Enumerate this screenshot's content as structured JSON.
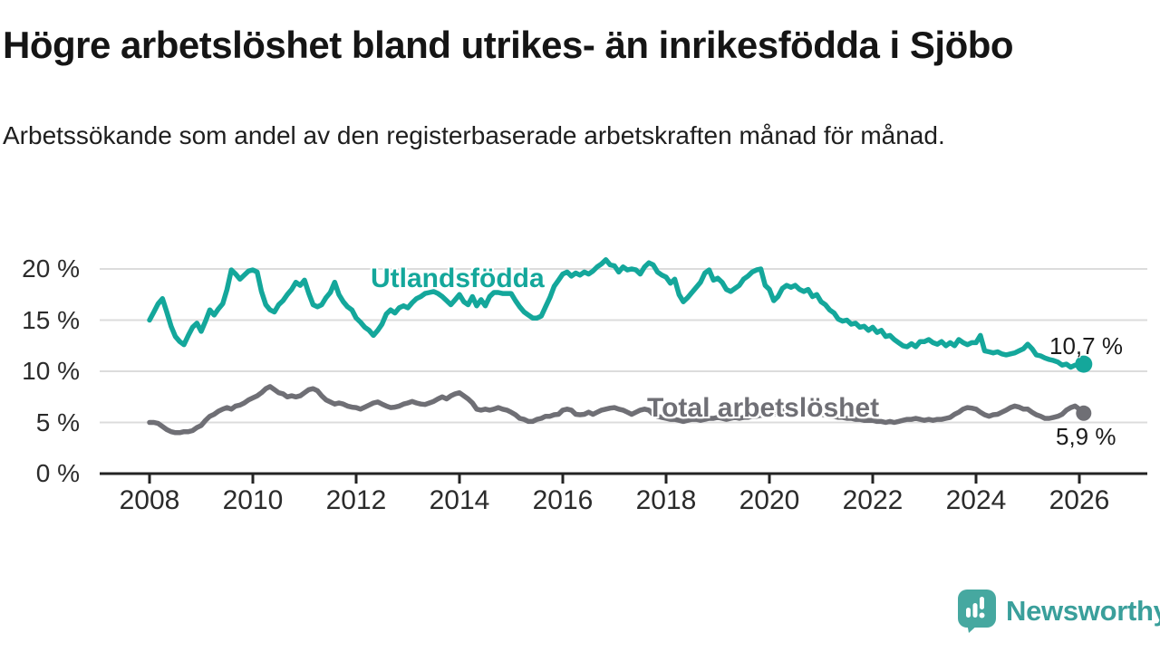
{
  "header": {
    "title": "Högre arbetslöshet bland utrikes- än inrikesfödda i Sjöbo",
    "subtitle": "Arbetssökande som andel av den registerbaserade arbetskraften månad för månad."
  },
  "chart_data": {
    "type": "line",
    "title": "Högre arbetslöshet bland utrikes- än inrikesfödda i Sjöbo",
    "xlabel": "",
    "ylabel": "Arbetssökande som andel av den registerbaserade arbetskraften",
    "x_unit": "monthly, from January 2008",
    "x_start_year": 2008,
    "x_months_per_point": 1,
    "ylim": [
      0,
      21.5
    ],
    "grid": true,
    "legend_position": "inline-labels",
    "x_ticks": [
      2008,
      2010,
      2012,
      2014,
      2016,
      2018,
      2020,
      2022,
      2024,
      2026
    ],
    "y_ticks": [
      {
        "value": 0,
        "label": "0 %"
      },
      {
        "value": 5,
        "label": "5 %"
      },
      {
        "value": 10,
        "label": "10 %"
      },
      {
        "value": 15,
        "label": "15 %"
      },
      {
        "value": 20,
        "label": "20 %"
      }
    ],
    "series": [
      {
        "name": "Utlandsfödda",
        "color": "#14a79b",
        "end_label": "10,7 %",
        "end_value": 10.7,
        "values": [
          15.0,
          15.8,
          16.6,
          17.1,
          15.8,
          14.4,
          13.4,
          12.9,
          12.6,
          13.5,
          14.3,
          14.7,
          13.9,
          14.9,
          16.0,
          15.5,
          16.1,
          16.6,
          18.0,
          19.9,
          19.5,
          19.0,
          19.4,
          19.8,
          19.9,
          19.7,
          17.8,
          16.5,
          16.0,
          15.8,
          16.5,
          16.9,
          17.5,
          18.0,
          18.7,
          18.4,
          18.9,
          17.6,
          16.5,
          16.3,
          16.5,
          17.2,
          17.7,
          18.7,
          17.5,
          16.8,
          16.3,
          16.0,
          15.2,
          14.8,
          14.3,
          14.0,
          13.5,
          14.0,
          14.6,
          15.6,
          16.0,
          15.7,
          16.2,
          16.4,
          16.2,
          16.7,
          17.1,
          17.3,
          17.6,
          17.7,
          17.8,
          17.6,
          17.3,
          16.9,
          16.5,
          17.0,
          17.5,
          16.8,
          16.5,
          17.3,
          16.4,
          17.0,
          16.4,
          17.3,
          17.7,
          17.7,
          17.6,
          17.6,
          17.6,
          16.9,
          16.3,
          15.8,
          15.5,
          15.2,
          15.2,
          15.4,
          16.3,
          17.2,
          18.3,
          18.9,
          19.5,
          19.7,
          19.3,
          19.6,
          19.4,
          19.7,
          19.5,
          19.8,
          20.2,
          20.5,
          20.9,
          20.4,
          20.3,
          19.7,
          20.2,
          19.9,
          20.0,
          19.9,
          19.5,
          20.2,
          20.6,
          20.4,
          19.7,
          19.4,
          19.2,
          18.6,
          19.0,
          17.5,
          16.8,
          17.2,
          17.7,
          18.2,
          18.7,
          19.6,
          19.9,
          18.9,
          19.1,
          18.7,
          18.0,
          17.8,
          18.1,
          18.4,
          19.0,
          19.3,
          19.7,
          19.9,
          20.0,
          18.4,
          18.0,
          16.9,
          17.3,
          18.1,
          18.4,
          18.2,
          18.4,
          18.0,
          17.8,
          18.0,
          17.3,
          17.5,
          16.8,
          16.5,
          16.0,
          15.7,
          15.1,
          14.9,
          15.0,
          14.6,
          14.7,
          14.3,
          14.4,
          14.0,
          14.3,
          13.8,
          14.0,
          13.4,
          13.5,
          13.1,
          12.8,
          12.5,
          12.4,
          12.7,
          12.4,
          12.9,
          12.9,
          13.1,
          12.8,
          12.65,
          12.9,
          12.5,
          12.8,
          12.5,
          13.1,
          12.8,
          12.6,
          12.8,
          12.8,
          13.5,
          12.0,
          11.9,
          11.8,
          11.9,
          11.7,
          11.6,
          11.7,
          11.8,
          12.0,
          12.2,
          12.65,
          12.2,
          11.6,
          11.5,
          11.3,
          11.15,
          11.05,
          10.9,
          10.6,
          10.7,
          10.4,
          10.6,
          10.6,
          10.7
        ]
      },
      {
        "name": "Total arbetslöshet",
        "color": "#6f6f75",
        "end_label": "5,9 %",
        "end_value": 5.9,
        "values": [
          5.0,
          5.0,
          4.9,
          4.6,
          4.3,
          4.1,
          4.0,
          4.0,
          4.1,
          4.1,
          4.2,
          4.5,
          4.7,
          5.2,
          5.6,
          5.8,
          6.1,
          6.3,
          6.45,
          6.3,
          6.6,
          6.7,
          6.9,
          7.2,
          7.4,
          7.6,
          7.9,
          8.3,
          8.5,
          8.2,
          7.9,
          7.8,
          7.5,
          7.6,
          7.5,
          7.6,
          7.9,
          8.2,
          8.3,
          8.1,
          7.6,
          7.2,
          7.0,
          6.8,
          6.9,
          6.8,
          6.6,
          6.5,
          6.45,
          6.3,
          6.5,
          6.7,
          6.9,
          7.0,
          6.8,
          6.6,
          6.45,
          6.5,
          6.6,
          6.8,
          6.9,
          7.05,
          6.9,
          6.8,
          6.75,
          6.9,
          7.05,
          7.3,
          7.5,
          7.3,
          7.6,
          7.8,
          7.9,
          7.6,
          7.3,
          6.9,
          6.3,
          6.2,
          6.3,
          6.2,
          6.3,
          6.45,
          6.3,
          6.2,
          6.0,
          5.75,
          5.4,
          5.3,
          5.1,
          5.1,
          5.3,
          5.4,
          5.6,
          5.6,
          5.75,
          5.8,
          6.2,
          6.3,
          6.2,
          5.8,
          5.75,
          5.8,
          6.0,
          5.8,
          6.0,
          6.2,
          6.3,
          6.4,
          6.45,
          6.3,
          6.2,
          6.0,
          5.8,
          6.0,
          6.2,
          6.3,
          6.2,
          5.8,
          5.6,
          5.5,
          5.4,
          5.3,
          5.3,
          5.2,
          5.1,
          5.2,
          5.3,
          5.3,
          5.2,
          5.3,
          5.4,
          5.4,
          5.5,
          5.4,
          5.3,
          5.4,
          5.5,
          5.4,
          5.5,
          5.5,
          5.6,
          5.6,
          5.7,
          5.7,
          5.7,
          5.8,
          6.0,
          6.1,
          6.2,
          6.1,
          6.0,
          6.0,
          5.9,
          5.9,
          5.8,
          5.8,
          5.8,
          5.7,
          5.6,
          5.6,
          5.5,
          5.5,
          5.4,
          5.4,
          5.3,
          5.3,
          5.2,
          5.2,
          5.2,
          5.1,
          5.1,
          5.0,
          5.1,
          5.0,
          5.1,
          5.2,
          5.3,
          5.3,
          5.4,
          5.3,
          5.2,
          5.3,
          5.2,
          5.3,
          5.3,
          5.4,
          5.5,
          5.8,
          6.0,
          6.3,
          6.45,
          6.4,
          6.3,
          6.0,
          5.75,
          5.6,
          5.75,
          5.8,
          6.0,
          6.2,
          6.45,
          6.6,
          6.5,
          6.3,
          6.3,
          6.0,
          5.75,
          5.6,
          5.4,
          5.4,
          5.5,
          5.6,
          5.8,
          6.2,
          6.45,
          6.6,
          6.3,
          5.9
        ]
      }
    ],
    "colors": {
      "grid": "#dcdcdc",
      "axis": "#232323",
      "series_utlandsfodda": "#14a79b",
      "series_total": "#6f6f75"
    }
  },
  "branding": {
    "logo_text": "Newsworthy",
    "logo_color": "#46a8a0"
  }
}
